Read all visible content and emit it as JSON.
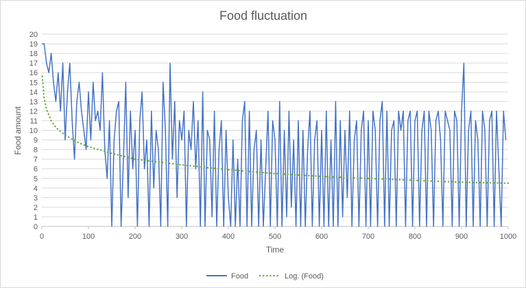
{
  "chart_data": {
    "type": "line",
    "title": "Food fluctuation",
    "xlabel": "Time",
    "ylabel": "Food amount",
    "xlim": [
      0,
      1000
    ],
    "ylim": [
      0,
      20
    ],
    "x_ticks": [
      0,
      100,
      200,
      300,
      400,
      500,
      600,
      700,
      800,
      900,
      1000
    ],
    "y_ticks": [
      0,
      1,
      2,
      3,
      4,
      5,
      6,
      7,
      8,
      9,
      10,
      11,
      12,
      13,
      14,
      15,
      16,
      17,
      18,
      19,
      20
    ],
    "grid": "horizontal",
    "legend_position": "bottom",
    "series": [
      {
        "name": "Food",
        "color": "#4472C4",
        "style": "solid",
        "x_start": 0,
        "x_step": 5,
        "values": [
          19,
          19,
          17,
          16,
          18,
          15,
          13,
          16,
          12,
          17,
          9,
          14,
          17,
          11,
          7,
          13,
          15,
          12,
          10,
          8,
          14,
          9,
          15,
          11,
          12,
          10,
          16,
          8,
          5,
          11,
          0,
          9,
          12,
          13,
          0,
          7,
          15,
          3,
          12,
          6,
          10,
          0,
          11,
          14,
          6,
          9,
          0,
          12,
          4,
          10,
          8,
          0,
          15,
          10,
          0,
          17,
          7,
          13,
          3,
          11,
          9,
          12,
          0,
          10,
          8,
          13,
          6,
          11,
          0,
          14,
          0,
          10,
          9,
          1,
          12,
          0,
          8,
          11,
          0,
          10,
          3,
          0,
          9,
          0,
          7,
          0,
          11,
          13,
          0,
          12,
          0,
          8,
          10,
          0,
          9,
          0,
          6,
          12,
          0,
          11,
          9,
          0,
          13,
          0,
          10,
          1,
          12,
          2,
          9,
          0,
          11,
          0,
          10,
          0,
          8,
          12,
          0,
          9,
          11,
          0,
          10,
          0,
          12,
          0,
          9,
          0,
          13,
          0,
          11,
          1,
          10,
          3,
          12,
          0,
          9,
          11,
          0,
          10,
          12,
          0,
          11,
          0,
          12,
          10,
          0,
          11,
          13,
          0,
          12,
          0,
          10,
          11,
          0,
          12,
          10,
          12,
          0,
          11,
          12,
          0,
          11,
          12,
          0,
          10,
          12,
          0,
          12,
          10,
          0,
          11,
          12,
          9,
          0,
          12,
          11,
          10,
          0,
          12,
          11,
          0,
          12,
          17,
          0,
          10,
          12,
          0,
          11,
          9,
          0,
          12,
          10,
          0,
          11,
          12,
          0,
          12,
          6,
          0,
          12,
          9
        ]
      },
      {
        "name": "Log. (Food)",
        "color": "#70AD47",
        "style": "dotted",
        "trend": "logarithmic",
        "x": [
          1,
          5,
          10,
          20,
          30,
          50,
          75,
          100,
          150,
          200,
          300,
          400,
          500,
          600,
          700,
          800,
          900,
          1000
        ],
        "values": [
          15.6,
          13.3,
          12.2,
          11.0,
          10.3,
          9.5,
          8.8,
          8.3,
          7.6,
          7.0,
          6.4,
          5.9,
          5.5,
          5.2,
          5.0,
          4.8,
          4.6,
          4.5
        ]
      }
    ]
  }
}
